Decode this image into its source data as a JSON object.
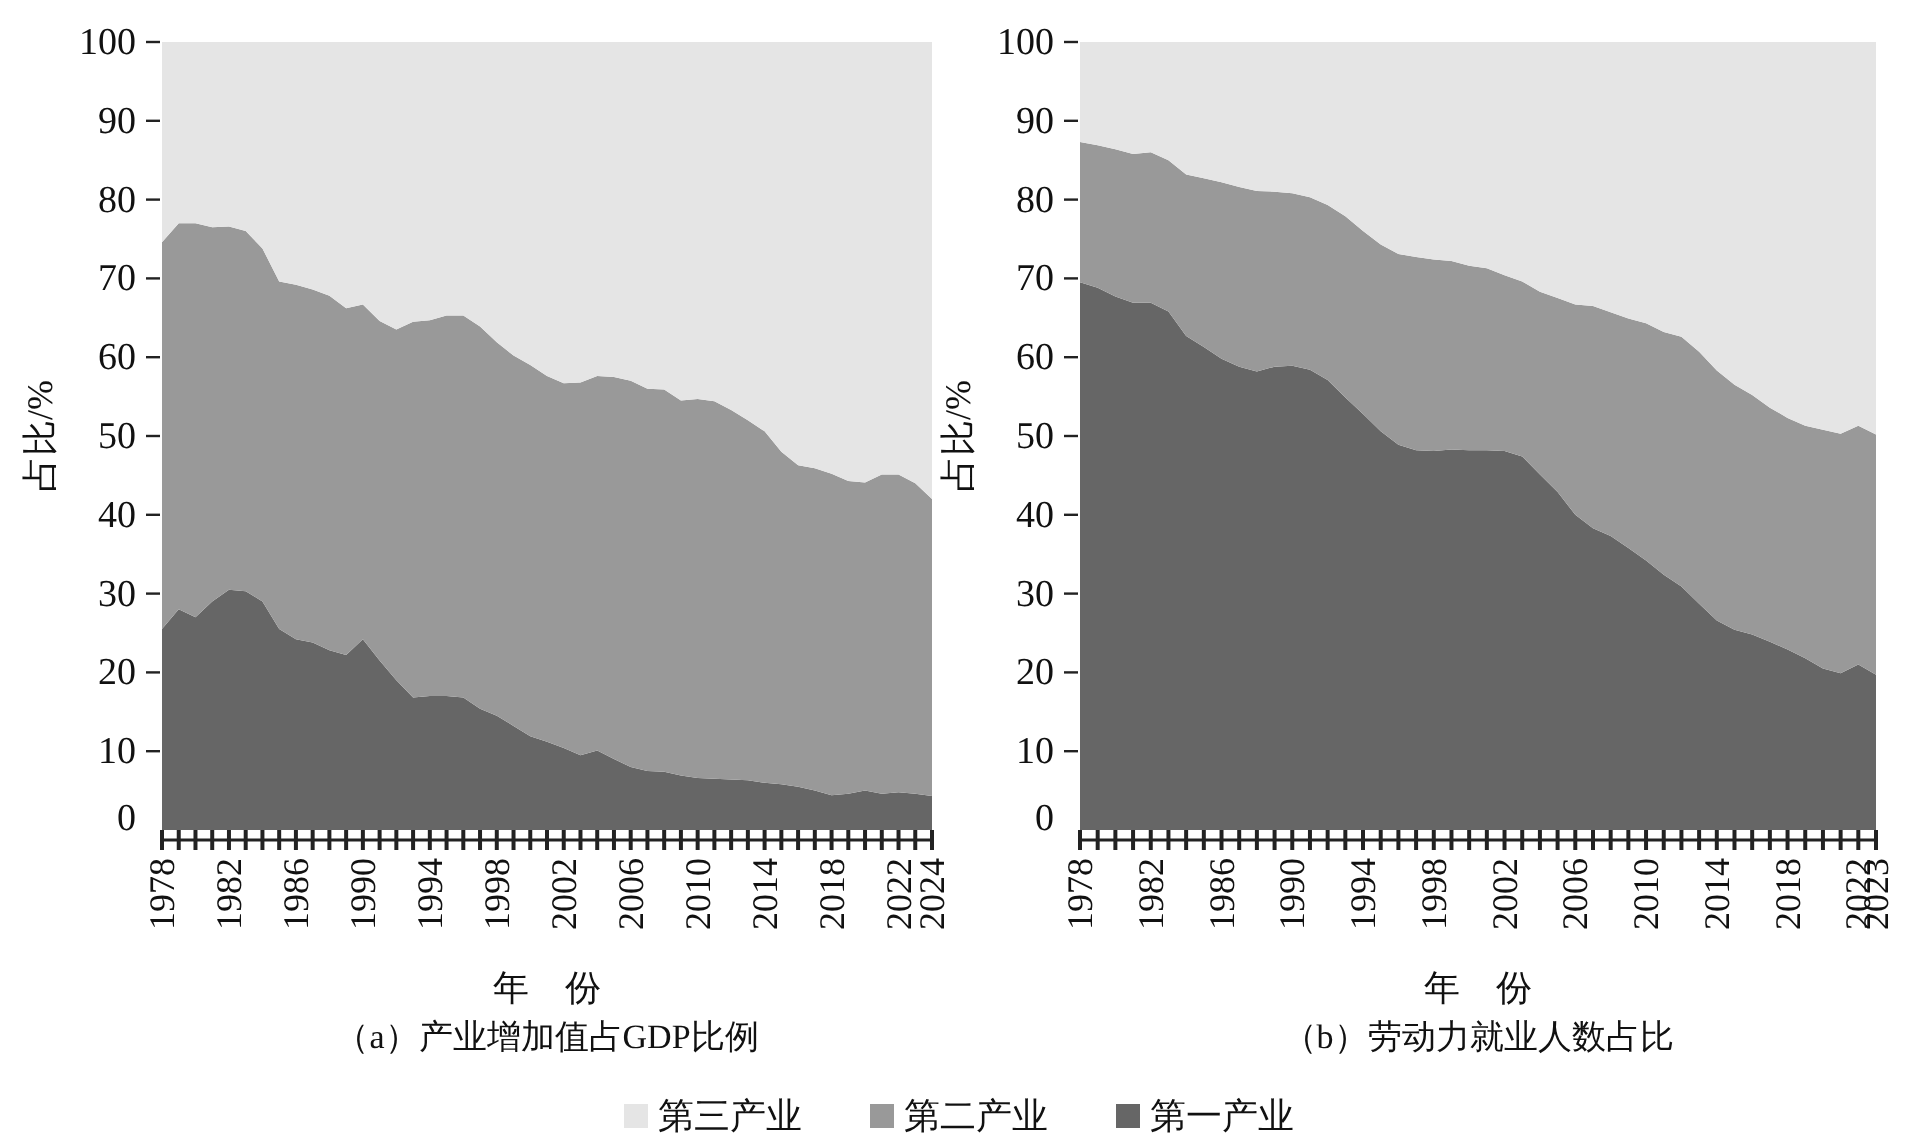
{
  "chart_data": [
    {
      "type": "area",
      "stacked": true,
      "title": "（a）产业增加值占GDP比例",
      "xlabel": "年　份",
      "ylabel": "占比/%",
      "legend": "bottom",
      "x": [
        1978,
        1979,
        1980,
        1981,
        1982,
        1983,
        1984,
        1985,
        1986,
        1987,
        1988,
        1989,
        1990,
        1991,
        1992,
        1993,
        1994,
        1995,
        1996,
        1997,
        1998,
        1999,
        2000,
        2001,
        2002,
        2003,
        2004,
        2005,
        2006,
        2007,
        2008,
        2009,
        2010,
        2011,
        2012,
        2013,
        2014,
        2015,
        2016,
        2017,
        2018,
        2019,
        2020,
        2021,
        2022,
        2023,
        2024
      ],
      "xlim": [
        1978,
        2024
      ],
      "xticks": [
        1978,
        {
          "value": 1979,
          "label": null
        },
        {
          "value": 1980,
          "label": null
        },
        {
          "value": 1981,
          "label": null
        },
        1982,
        {
          "value": 1983,
          "label": null
        },
        {
          "value": 1984,
          "label": null
        },
        {
          "value": 1985,
          "label": null
        },
        1986,
        {
          "value": 1987,
          "label": null
        },
        {
          "value": 1988,
          "label": null
        },
        {
          "value": 1989,
          "label": null
        },
        1990,
        {
          "value": 1991,
          "label": null
        },
        {
          "value": 1992,
          "label": null
        },
        {
          "value": 1993,
          "label": null
        },
        1994,
        {
          "value": 1995,
          "label": null
        },
        {
          "value": 1996,
          "label": null
        },
        {
          "value": 1997,
          "label": null
        },
        1998,
        {
          "value": 1999,
          "label": null
        },
        {
          "value": 2000,
          "label": null
        },
        {
          "value": 2001,
          "label": null
        },
        2002,
        {
          "value": 2003,
          "label": null
        },
        {
          "value": 2004,
          "label": null
        },
        {
          "value": 2005,
          "label": null
        },
        2006,
        {
          "value": 2007,
          "label": null
        },
        {
          "value": 2008,
          "label": null
        },
        {
          "value": 2009,
          "label": null
        },
        2010,
        {
          "value": 2011,
          "label": null
        },
        {
          "value": 2012,
          "label": null
        },
        {
          "value": 2013,
          "label": null
        },
        2014,
        {
          "value": 2015,
          "label": null
        },
        {
          "value": 2016,
          "label": null
        },
        {
          "value": 2017,
          "label": null
        },
        2018,
        {
          "value": 2019,
          "label": null
        },
        {
          "value": 2020,
          "label": null
        },
        {
          "value": 2021,
          "label": null
        },
        2022,
        {
          "value": 2023,
          "label": null
        },
        2024
      ],
      "ylim": [
        0,
        100
      ],
      "yticks": [
        0,
        10,
        20,
        30,
        40,
        50,
        60,
        70,
        80,
        90,
        100
      ],
      "series": [
        {
          "name": "第一产业",
          "color": "#666666",
          "values": [
            25.5,
            28,
            27,
            29,
            30.5,
            30.3,
            29,
            25.5,
            24.2,
            23.8,
            22.8,
            22.2,
            24.2,
            21.5,
            19,
            16.8,
            17,
            17,
            16.8,
            15.4,
            14.5,
            13.2,
            11.9,
            11.2,
            10.4,
            9.5,
            10.1,
            9,
            8,
            7.5,
            7.4,
            6.9,
            6.6,
            6.5,
            6.4,
            6.3,
            6,
            5.8,
            5.5,
            5,
            4.4,
            4.6,
            5,
            4.6,
            4.8,
            4.6,
            4.3
          ]
        },
        {
          "name": "第二产业",
          "color": "#999999",
          "values": [
            49.1,
            49,
            50,
            47.5,
            46.1,
            45.7,
            44.8,
            44.1,
            45,
            44.8,
            45,
            44,
            42.5,
            43.1,
            44.5,
            47.7,
            47.7,
            48.3,
            48.5,
            48.5,
            47.4,
            47,
            47.1,
            46.4,
            46.3,
            47.3,
            47.5,
            48.5,
            49,
            48.5,
            48.5,
            47.6,
            48.1,
            47.9,
            46.9,
            45.7,
            44.6,
            42.2,
            40.8,
            40.9,
            40.8,
            39.7,
            39.1,
            40.5,
            40.3,
            39.4,
            37.7
          ]
        },
        {
          "name": "第三产业",
          "color": "#e5e5e5",
          "values": [
            25.4,
            23,
            23,
            23.5,
            23.4,
            24,
            26.2,
            30.4,
            30.8,
            31.4,
            32.2,
            33.8,
            33.3,
            35.4,
            36.5,
            35.5,
            35.3,
            34.7,
            34.7,
            36.1,
            38.1,
            39.8,
            41,
            42.4,
            43.3,
            43.2,
            42.4,
            42.5,
            43,
            44,
            44.1,
            45.5,
            45.3,
            45.6,
            46.7,
            48,
            49.4,
            52,
            53.7,
            54.1,
            54.8,
            55.7,
            55.9,
            54.9,
            54.9,
            56,
            58
          ]
        }
      ]
    },
    {
      "type": "area",
      "stacked": true,
      "title": "（b）劳动力就业人数占比",
      "xlabel": "年　份",
      "ylabel": "占比/%",
      "x": [
        1978,
        1979,
        1980,
        1981,
        1982,
        1983,
        1984,
        1985,
        1986,
        1987,
        1988,
        1989,
        1990,
        1991,
        1992,
        1993,
        1994,
        1995,
        1996,
        1997,
        1998,
        1999,
        2000,
        2001,
        2002,
        2003,
        2004,
        2005,
        2006,
        2007,
        2008,
        2009,
        2010,
        2011,
        2012,
        2013,
        2014,
        2015,
        2016,
        2017,
        2018,
        2019,
        2020,
        2021,
        2022,
        2023
      ],
      "xlim": [
        1978,
        2023
      ],
      "xticks": [
        1978,
        {
          "value": 1979,
          "label": null
        },
        {
          "value": 1980,
          "label": null
        },
        {
          "value": 1981,
          "label": null
        },
        1982,
        {
          "value": 1983,
          "label": null
        },
        {
          "value": 1984,
          "label": null
        },
        {
          "value": 1985,
          "label": null
        },
        1986,
        {
          "value": 1987,
          "label": null
        },
        {
          "value": 1988,
          "label": null
        },
        {
          "value": 1989,
          "label": null
        },
        1990,
        {
          "value": 1991,
          "label": null
        },
        {
          "value": 1992,
          "label": null
        },
        {
          "value": 1993,
          "label": null
        },
        1994,
        {
          "value": 1995,
          "label": null
        },
        {
          "value": 1996,
          "label": null
        },
        {
          "value": 1997,
          "label": null
        },
        1998,
        {
          "value": 1999,
          "label": null
        },
        {
          "value": 2000,
          "label": null
        },
        {
          "value": 2001,
          "label": null
        },
        2002,
        {
          "value": 2003,
          "label": null
        },
        {
          "value": 2004,
          "label": null
        },
        {
          "value": 2005,
          "label": null
        },
        2006,
        {
          "value": 2007,
          "label": null
        },
        {
          "value": 2008,
          "label": null
        },
        {
          "value": 2009,
          "label": null
        },
        2010,
        {
          "value": 2011,
          "label": null
        },
        {
          "value": 2012,
          "label": null
        },
        {
          "value": 2013,
          "label": null
        },
        2014,
        {
          "value": 2015,
          "label": null
        },
        {
          "value": 2016,
          "label": null
        },
        {
          "value": 2017,
          "label": null
        },
        2018,
        {
          "value": 2019,
          "label": null
        },
        {
          "value": 2020,
          "label": null
        },
        {
          "value": 2021,
          "label": null
        },
        2022,
        2023
      ],
      "ylim": [
        0,
        100
      ],
      "yticks": [
        0,
        10,
        20,
        30,
        40,
        50,
        60,
        70,
        80,
        90,
        100
      ],
      "series": [
        {
          "color": "#666666",
          "values": [
            69.5,
            68.8,
            67.7,
            66.9,
            66.9,
            65.8,
            62.7,
            61.3,
            59.8,
            58.8,
            58.2,
            58.8,
            58.9,
            58.4,
            57.1,
            54.9,
            52.8,
            50.6,
            48.9,
            48.2,
            48.1,
            48.3,
            48.2,
            48.2,
            48.1,
            47.4,
            45.1,
            42.9,
            40,
            38.3,
            37.3,
            35.8,
            34.2,
            32.4,
            30.9,
            28.7,
            26.6,
            25.4,
            24.8,
            23.9,
            22.9,
            21.8,
            20.5,
            19.9,
            21,
            19.7
          ]
        },
        {
          "color": "#999999",
          "values": [
            17.8,
            18.1,
            18.7,
            18.9,
            19.1,
            19.2,
            20.5,
            21.4,
            22.4,
            22.8,
            22.9,
            22.2,
            21.9,
            21.9,
            22.2,
            23,
            23.2,
            23.7,
            24.2,
            24.5,
            24.3,
            23.9,
            23.4,
            23.1,
            22.3,
            22.2,
            23.2,
            24.6,
            26.7,
            28.2,
            28.4,
            29.1,
            30.1,
            30.8,
            31.7,
            32,
            31.7,
            31.1,
            30.4,
            29.7,
            29.4,
            29.5,
            30.3,
            30.4,
            30.3,
            30.5
          ]
        },
        {
          "color": "#e5e5e5",
          "values": [
            12.7,
            13.1,
            13.6,
            14.2,
            14,
            15,
            16.8,
            17.3,
            17.8,
            18.4,
            18.9,
            19,
            19.2,
            19.7,
            20.7,
            22.1,
            24,
            25.7,
            26.9,
            27.3,
            27.6,
            27.8,
            28.4,
            28.7,
            29.6,
            30.4,
            31.7,
            32.5,
            33.3,
            33.5,
            34.3,
            35.1,
            35.7,
            36.8,
            37.4,
            39.3,
            41.7,
            43.5,
            44.8,
            46.4,
            47.7,
            48.7,
            49.2,
            49.7,
            48.7,
            49.8
          ]
        }
      ]
    }
  ]
}
